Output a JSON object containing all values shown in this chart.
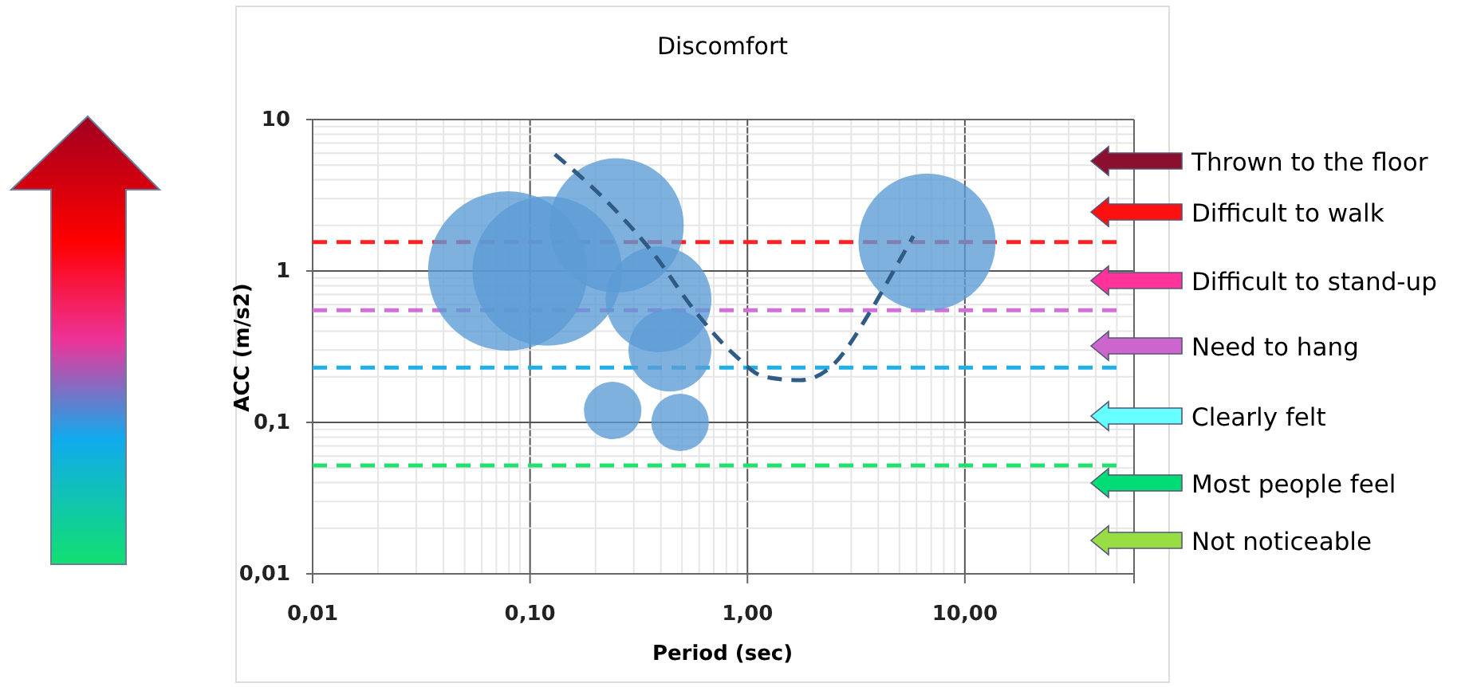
{
  "chart_data": {
    "type": "bubble",
    "title": "Discomfort",
    "xlabel": "Period (sec)",
    "ylabel": "ACC (m/s2)",
    "log": "xy",
    "grid": true,
    "xlim": [
      0.01,
      60
    ],
    "xticks": [
      {
        "value": 0.01,
        "label": "0,01"
      },
      {
        "value": 0.1,
        "label": "0,10"
      },
      {
        "value": 1,
        "label": "1,00"
      },
      {
        "value": 10,
        "label": "10,00"
      }
    ],
    "ylim": [
      0.01,
      10
    ],
    "yticks": [
      {
        "value": 0.01,
        "label": "0,01"
      },
      {
        "value": 0.1,
        "label": "0,1"
      },
      1,
      10
    ],
    "series": [
      {
        "color": "#5b9bd5",
        "x": [
          0.079,
          0.12,
          0.25,
          0.39,
          0.44,
          0.24,
          0.49,
          6.7
        ],
        "values": [
          1.0,
          1.0,
          2.0,
          0.65,
          0.3,
          0.12,
          0.1,
          1.55
        ],
        "sizes": [
          1,
          0.88,
          0.71,
          0.44,
          0.27,
          0.13,
          0.13,
          0.74
        ]
      },
      {
        "type": "line",
        "color": "#2f5b85",
        "line_style": "dashed",
        "marker": "none",
        "x": [
          0.13,
          0.23,
          0.37,
          0.57,
          0.87,
          1.2,
          1.75,
          2.4,
          3.7,
          4.7,
          5.8
        ],
        "values": [
          5.9,
          2.8,
          1.3,
          0.55,
          0.28,
          0.2,
          0.19,
          0.23,
          0.55,
          1.0,
          1.7
        ]
      }
    ],
    "ref_lines": [
      {
        "axis": "y",
        "value": 1.55,
        "color": "#ff2020",
        "line_style": "dashed"
      },
      {
        "axis": "y",
        "value": 0.55,
        "color": "#d070d8",
        "line_style": "dashed"
      },
      {
        "axis": "y",
        "value": 0.23,
        "color": "#20b0e8",
        "line_style": "dashed"
      },
      {
        "axis": "y",
        "value": 0.052,
        "color": "#20e070",
        "line_style": "dashed"
      }
    ],
    "annotations": [
      "Thrown to the floor",
      "Difficult to walk",
      "Difficult to stand-up",
      "Need to hang",
      "Clearly felt",
      "Most people feel",
      "Not noticeable"
    ]
  }
}
